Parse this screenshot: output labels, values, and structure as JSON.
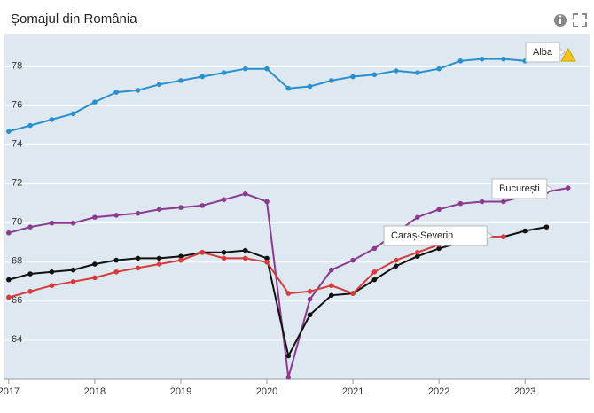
{
  "chart_data": {
    "type": "line",
    "title": "Șomajul din România",
    "xlim": [
      2016.95,
      2023.75
    ],
    "xticks": [
      2017,
      2018,
      2019,
      2020,
      2021,
      2022,
      2023
    ],
    "ylim": [
      62,
      79.7
    ],
    "yticks": [
      64,
      66,
      68,
      70,
      72,
      74,
      76,
      78
    ],
    "grid": true,
    "series": [
      {
        "name": "Alba",
        "color": "#2a8fcf",
        "x": [
          2017,
          2017.25,
          2017.5,
          2017.75,
          2018,
          2018.25,
          2018.5,
          2018.75,
          2019,
          2019.25,
          2019.5,
          2019.75,
          2020,
          2020.25,
          2020.5,
          2020.75,
          2021,
          2021.25,
          2021.5,
          2021.75,
          2022,
          2022.25,
          2022.5,
          2022.75,
          2023
        ],
        "values": [
          74.7,
          75.0,
          75.3,
          75.6,
          76.2,
          76.7,
          76.8,
          77.1,
          77.3,
          77.5,
          77.7,
          77.9,
          77.9,
          76.9,
          77.0,
          77.3,
          77.5,
          77.6,
          77.8,
          77.7,
          77.9,
          78.3,
          78.4,
          78.4,
          78.3
        ]
      },
      {
        "name": "București",
        "color": "#8b3a8f",
        "x": [
          2017,
          2017.25,
          2017.5,
          2017.75,
          2018,
          2018.25,
          2018.5,
          2018.75,
          2019,
          2019.25,
          2019.5,
          2019.75,
          2020,
          2020.25,
          2020.5,
          2020.75,
          2021,
          2021.25,
          2021.5,
          2021.75,
          2022,
          2022.25,
          2022.5,
          2022.75,
          2023,
          2023.25,
          2023.5
        ],
        "values": [
          69.5,
          69.8,
          70.0,
          70.0,
          70.3,
          70.4,
          70.5,
          70.7,
          70.8,
          70.9,
          71.2,
          71.5,
          71.1,
          62.1,
          66.1,
          67.6,
          68.1,
          68.7,
          69.5,
          70.3,
          70.7,
          71.0,
          71.1,
          71.1,
          71.4,
          71.6,
          71.8
        ]
      },
      {
        "name": "Caraș-Severin",
        "color": "#111111",
        "x": [
          2017,
          2017.25,
          2017.5,
          2017.75,
          2018,
          2018.25,
          2018.5,
          2018.75,
          2019,
          2019.25,
          2019.5,
          2019.75,
          2020,
          2020.25,
          2020.5,
          2020.75,
          2021,
          2021.25,
          2021.5,
          2021.75,
          2022,
          2022.25,
          2022.5,
          2022.75,
          2023,
          2023.25
        ],
        "values": [
          67.1,
          67.4,
          67.5,
          67.6,
          67.9,
          68.1,
          68.2,
          68.2,
          68.3,
          68.5,
          68.5,
          68.6,
          68.2,
          63.2,
          65.3,
          66.3,
          66.4,
          67.1,
          67.8,
          68.3,
          68.7,
          69.0,
          69.3,
          69.3,
          69.6,
          69.8
        ]
      },
      {
        "color": "#d63a3a",
        "x": [
          2017,
          2017.25,
          2017.5,
          2017.75,
          2018,
          2018.25,
          2018.5,
          2018.75,
          2019,
          2019.25,
          2019.5,
          2019.75,
          2020,
          2020.25,
          2020.5,
          2020.75,
          2021,
          2021.25,
          2021.5,
          2021.75,
          2022,
          2022.25,
          2022.5,
          2022.75
        ],
        "values": [
          66.2,
          66.5,
          66.8,
          67.0,
          67.2,
          67.5,
          67.7,
          67.9,
          68.1,
          68.5,
          68.2,
          68.2,
          68.0,
          66.4,
          66.5,
          66.8,
          66.4,
          67.5,
          68.1,
          68.5,
          68.9,
          69.2,
          69.3,
          69.3
        ]
      }
    ]
  }
}
